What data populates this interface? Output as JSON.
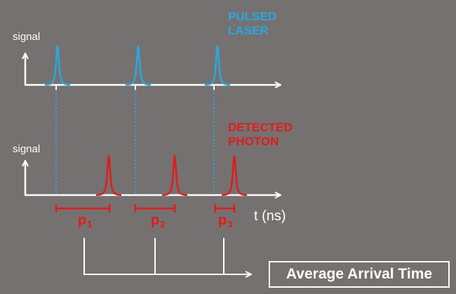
{
  "laser": {
    "axis_label": "signal",
    "caption": [
      "PULSED",
      "LASER"
    ],
    "color": "#29a8e0"
  },
  "photon": {
    "axis_label": "signal",
    "caption": [
      "DETECTED",
      "PHOTON"
    ],
    "color": "#e21b1b"
  },
  "time_axis_label": "t (ns)",
  "intervals": [
    {
      "label": "p",
      "index": "1"
    },
    {
      "label": "p",
      "index": "2"
    },
    {
      "label": "p",
      "index": "3"
    }
  ],
  "result_label": "Average Arrival Time",
  "colors": {
    "background": "#767171",
    "axis": "#ffffff"
  }
}
